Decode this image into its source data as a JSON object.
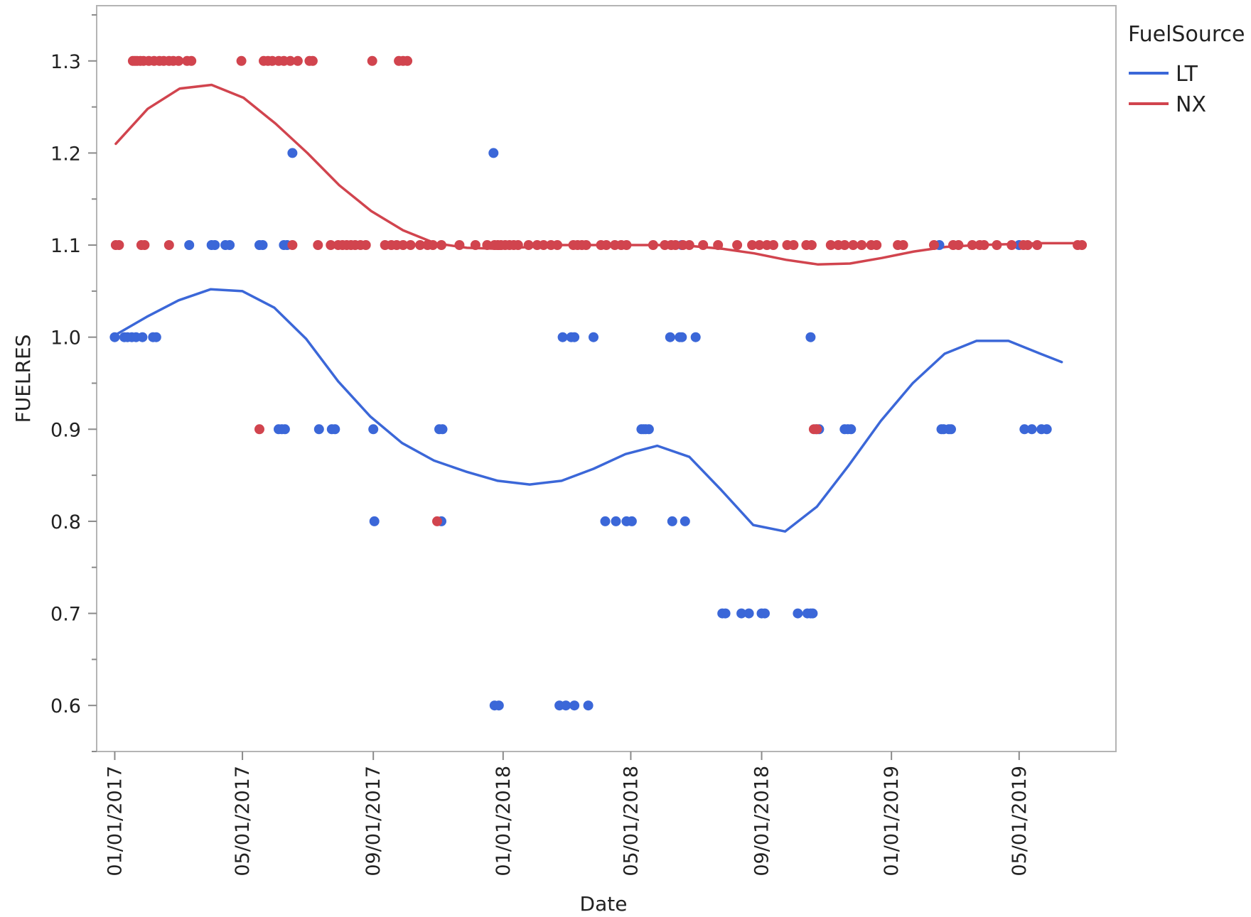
{
  "chart_data": {
    "type": "scatter",
    "title": "",
    "xlabel": "Date",
    "ylabel": "FUELRES",
    "x_axis": {
      "type": "date",
      "range": [
        "2016-12-15",
        "2019-07-31"
      ],
      "ticks": [
        {
          "date": "2017-01-01",
          "label": "01/01/2017"
        },
        {
          "date": "2017-05-01",
          "label": "05/01/2017"
        },
        {
          "date": "2017-09-01",
          "label": "09/01/2017"
        },
        {
          "date": "2018-01-01",
          "label": "01/01/2018"
        },
        {
          "date": "2018-05-01",
          "label": "05/01/2018"
        },
        {
          "date": "2018-09-01",
          "label": "09/01/2018"
        },
        {
          "date": "2019-01-01",
          "label": "01/01/2019"
        },
        {
          "date": "2019-05-01",
          "label": "05/01/2019"
        }
      ]
    },
    "y_axis": {
      "range": [
        0.55,
        1.36
      ],
      "ticks": [
        {
          "value": 0.6,
          "label": "0.6"
        },
        {
          "value": 0.7,
          "label": "0.7"
        },
        {
          "value": 0.8,
          "label": "0.8"
        },
        {
          "value": 0.9,
          "label": "0.9"
        },
        {
          "value": 1.0,
          "label": "1.0"
        },
        {
          "value": 1.1,
          "label": "1.1"
        },
        {
          "value": 1.2,
          "label": "1.2"
        },
        {
          "value": 1.3,
          "label": "1.3"
        }
      ],
      "minor_step": 0.05
    },
    "grid": false,
    "legend": {
      "title": "FuelSource",
      "position": "right-top",
      "entries": [
        {
          "name": "LT",
          "color": "#3b67d8"
        },
        {
          "name": "NX",
          "color": "#d1444e"
        }
      ]
    },
    "series": [
      {
        "name": "LT",
        "color": "#3b67d8",
        "points": [
          [
            "2017-01-01",
            1.0
          ],
          [
            "2017-01-10",
            1.0
          ],
          [
            "2017-01-13",
            1.0
          ],
          [
            "2017-01-17",
            1.0
          ],
          [
            "2017-01-21",
            1.0
          ],
          [
            "2017-01-27",
            1.0
          ],
          [
            "2017-02-06",
            1.0
          ],
          [
            "2017-02-09",
            1.0
          ],
          [
            "2017-03-12",
            1.1
          ],
          [
            "2017-04-02",
            1.1
          ],
          [
            "2017-04-05",
            1.1
          ],
          [
            "2017-04-15",
            1.1
          ],
          [
            "2017-04-19",
            1.1
          ],
          [
            "2017-05-17",
            1.1
          ],
          [
            "2017-05-20",
            1.1
          ],
          [
            "2017-06-09",
            1.1
          ],
          [
            "2017-06-12",
            1.1
          ],
          [
            "2017-06-17",
            1.2
          ],
          [
            "2017-06-04",
            0.9
          ],
          [
            "2017-06-07",
            0.9
          ],
          [
            "2017-06-10",
            0.9
          ],
          [
            "2017-07-12",
            0.9
          ],
          [
            "2017-07-24",
            0.9
          ],
          [
            "2017-07-27",
            0.9
          ],
          [
            "2017-09-01",
            0.9
          ],
          [
            "2017-11-02",
            0.9
          ],
          [
            "2017-11-05",
            0.9
          ],
          [
            "2017-09-02",
            0.8
          ],
          [
            "2017-11-04",
            0.8
          ],
          [
            "2017-12-23",
            1.2
          ],
          [
            "2017-12-24",
            0.6
          ],
          [
            "2017-12-28",
            0.6
          ],
          [
            "2018-02-23",
            0.6
          ],
          [
            "2018-03-01",
            0.6
          ],
          [
            "2018-03-09",
            0.6
          ],
          [
            "2018-03-22",
            0.6
          ],
          [
            "2018-02-26",
            1.0
          ],
          [
            "2018-03-06",
            1.0
          ],
          [
            "2018-03-09",
            1.0
          ],
          [
            "2018-03-27",
            1.0
          ],
          [
            "2018-06-07",
            1.0
          ],
          [
            "2018-06-16",
            1.0
          ],
          [
            "2018-06-18",
            1.0
          ],
          [
            "2018-07-01",
            1.0
          ],
          [
            "2018-10-17",
            1.0
          ],
          [
            "2018-04-07",
            0.8
          ],
          [
            "2018-04-17",
            0.8
          ],
          [
            "2018-04-27",
            0.8
          ],
          [
            "2018-05-02",
            0.8
          ],
          [
            "2018-06-09",
            0.8
          ],
          [
            "2018-06-21",
            0.8
          ],
          [
            "2018-05-11",
            0.9
          ],
          [
            "2018-05-13",
            0.9
          ],
          [
            "2018-05-15",
            0.9
          ],
          [
            "2018-05-18",
            0.9
          ],
          [
            "2018-10-22",
            0.9
          ],
          [
            "2018-10-25",
            0.9
          ],
          [
            "2018-11-18",
            0.9
          ],
          [
            "2018-11-21",
            0.9
          ],
          [
            "2018-11-24",
            0.9
          ],
          [
            "2019-02-17",
            0.9
          ],
          [
            "2019-02-19",
            0.9
          ],
          [
            "2019-02-24",
            0.9
          ],
          [
            "2019-02-26",
            0.9
          ],
          [
            "2019-05-06",
            0.9
          ],
          [
            "2019-05-13",
            0.9
          ],
          [
            "2019-05-22",
            0.9
          ],
          [
            "2019-05-27",
            0.9
          ],
          [
            "2018-07-26",
            0.7
          ],
          [
            "2018-07-29",
            0.7
          ],
          [
            "2018-08-13",
            0.7
          ],
          [
            "2018-08-20",
            0.7
          ],
          [
            "2018-09-01",
            0.7
          ],
          [
            "2018-09-04",
            0.7
          ],
          [
            "2018-10-05",
            0.7
          ],
          [
            "2018-10-14",
            0.7
          ],
          [
            "2018-10-17",
            0.7
          ],
          [
            "2018-10-19",
            0.7
          ],
          [
            "2018-06-18",
            1.1
          ],
          [
            "2019-02-15",
            1.1
          ],
          [
            "2019-05-01",
            1.1
          ]
        ],
        "smoother": [
          [
            "2017-01-01",
            1.002
          ],
          [
            "2017-01-31",
            1.022
          ],
          [
            "2017-03-02",
            1.04
          ],
          [
            "2017-04-01",
            1.052
          ],
          [
            "2017-05-01",
            1.05
          ],
          [
            "2017-05-31",
            1.032
          ],
          [
            "2017-06-30",
            0.998
          ],
          [
            "2017-07-30",
            0.952
          ],
          [
            "2017-08-29",
            0.914
          ],
          [
            "2017-09-28",
            0.885
          ],
          [
            "2017-10-28",
            0.866
          ],
          [
            "2017-11-27",
            0.854
          ],
          [
            "2017-12-27",
            0.844
          ],
          [
            "2018-01-26",
            0.84
          ],
          [
            "2018-02-25",
            0.844
          ],
          [
            "2018-03-27",
            0.857
          ],
          [
            "2018-04-26",
            0.873
          ],
          [
            "2018-05-26",
            0.882
          ],
          [
            "2018-06-25",
            0.87
          ],
          [
            "2018-07-25",
            0.834
          ],
          [
            "2018-08-24",
            0.796
          ],
          [
            "2018-09-23",
            0.789
          ],
          [
            "2018-10-23",
            0.816
          ],
          [
            "2018-11-22",
            0.861
          ],
          [
            "2018-12-22",
            0.909
          ],
          [
            "2019-01-21",
            0.95
          ],
          [
            "2019-02-20",
            0.982
          ],
          [
            "2019-03-22",
            0.996
          ],
          [
            "2019-04-21",
            0.996
          ],
          [
            "2019-05-21",
            0.982
          ],
          [
            "2019-06-10",
            0.973
          ]
        ]
      },
      {
        "name": "NX",
        "color": "#d1444e",
        "points": [
          [
            "2017-01-18",
            1.3
          ],
          [
            "2017-01-20",
            1.3
          ],
          [
            "2017-01-22",
            1.3
          ],
          [
            "2017-01-25",
            1.3
          ],
          [
            "2017-01-28",
            1.3
          ],
          [
            "2017-02-02",
            1.3
          ],
          [
            "2017-02-07",
            1.3
          ],
          [
            "2017-02-12",
            1.3
          ],
          [
            "2017-02-16",
            1.3
          ],
          [
            "2017-02-21",
            1.3
          ],
          [
            "2017-02-25",
            1.3
          ],
          [
            "2017-03-02",
            1.3
          ],
          [
            "2017-03-10",
            1.3
          ],
          [
            "2017-03-14",
            1.3
          ],
          [
            "2017-04-30",
            1.3
          ],
          [
            "2017-05-21",
            1.3
          ],
          [
            "2017-05-25",
            1.3
          ],
          [
            "2017-05-29",
            1.3
          ],
          [
            "2017-06-04",
            1.3
          ],
          [
            "2017-06-09",
            1.3
          ],
          [
            "2017-06-15",
            1.3
          ],
          [
            "2017-06-22",
            1.3
          ],
          [
            "2017-07-03",
            1.3
          ],
          [
            "2017-07-06",
            1.3
          ],
          [
            "2017-08-31",
            1.3
          ],
          [
            "2017-09-25",
            1.3
          ],
          [
            "2017-09-29",
            1.3
          ],
          [
            "2017-10-03",
            1.3
          ],
          [
            "2017-01-02",
            1.1
          ],
          [
            "2017-01-05",
            1.1
          ],
          [
            "2017-01-26",
            1.1
          ],
          [
            "2017-01-29",
            1.1
          ],
          [
            "2017-02-21",
            1.1
          ],
          [
            "2017-06-17",
            1.1
          ],
          [
            "2017-07-11",
            1.1
          ],
          [
            "2017-07-23",
            1.1
          ],
          [
            "2017-07-30",
            1.1
          ],
          [
            "2017-08-03",
            1.1
          ],
          [
            "2017-08-07",
            1.1
          ],
          [
            "2017-08-11",
            1.1
          ],
          [
            "2017-08-15",
            1.1
          ],
          [
            "2017-08-20",
            1.1
          ],
          [
            "2017-08-25",
            1.1
          ],
          [
            "2017-09-12",
            1.1
          ],
          [
            "2017-09-18",
            1.1
          ],
          [
            "2017-09-23",
            1.1
          ],
          [
            "2017-09-29",
            1.1
          ],
          [
            "2017-10-06",
            1.1
          ],
          [
            "2017-10-15",
            1.1
          ],
          [
            "2017-10-22",
            1.1
          ],
          [
            "2017-10-27",
            1.1
          ],
          [
            "2017-11-04",
            1.1
          ],
          [
            "2017-11-21",
            1.1
          ],
          [
            "2017-12-06",
            1.1
          ],
          [
            "2017-12-17",
            1.1
          ],
          [
            "2017-12-24",
            1.1
          ],
          [
            "2017-12-27",
            1.1
          ],
          [
            "2017-12-30",
            1.1
          ],
          [
            "2018-01-03",
            1.1
          ],
          [
            "2018-01-07",
            1.1
          ],
          [
            "2018-01-11",
            1.1
          ],
          [
            "2018-01-15",
            1.1
          ],
          [
            "2018-01-25",
            1.1
          ],
          [
            "2018-02-02",
            1.1
          ],
          [
            "2018-02-08",
            1.1
          ],
          [
            "2018-02-15",
            1.1
          ],
          [
            "2018-02-21",
            1.1
          ],
          [
            "2018-03-08",
            1.1
          ],
          [
            "2018-03-12",
            1.1
          ],
          [
            "2018-03-16",
            1.1
          ],
          [
            "2018-03-20",
            1.1
          ],
          [
            "2018-04-03",
            1.1
          ],
          [
            "2018-04-08",
            1.1
          ],
          [
            "2018-04-16",
            1.1
          ],
          [
            "2018-04-22",
            1.1
          ],
          [
            "2018-04-27",
            1.1
          ],
          [
            "2018-05-22",
            1.1
          ],
          [
            "2018-06-02",
            1.1
          ],
          [
            "2018-06-08",
            1.1
          ],
          [
            "2018-06-12",
            1.1
          ],
          [
            "2018-06-19",
            1.1
          ],
          [
            "2018-06-25",
            1.1
          ],
          [
            "2018-07-08",
            1.1
          ],
          [
            "2018-07-22",
            1.1
          ],
          [
            "2018-08-09",
            1.1
          ],
          [
            "2018-08-23",
            1.1
          ],
          [
            "2018-08-30",
            1.1
          ],
          [
            "2018-09-06",
            1.1
          ],
          [
            "2018-09-12",
            1.1
          ],
          [
            "2018-09-25",
            1.1
          ],
          [
            "2018-10-01",
            1.1
          ],
          [
            "2018-10-13",
            1.1
          ],
          [
            "2018-10-18",
            1.1
          ],
          [
            "2018-11-05",
            1.1
          ],
          [
            "2018-11-12",
            1.1
          ],
          [
            "2018-11-18",
            1.1
          ],
          [
            "2018-11-26",
            1.1
          ],
          [
            "2018-12-04",
            1.1
          ],
          [
            "2018-12-13",
            1.1
          ],
          [
            "2018-12-18",
            1.1
          ],
          [
            "2019-01-07",
            1.1
          ],
          [
            "2019-01-12",
            1.1
          ],
          [
            "2019-02-10",
            1.1
          ],
          [
            "2019-02-28",
            1.1
          ],
          [
            "2019-03-05",
            1.1
          ],
          [
            "2019-03-18",
            1.1
          ],
          [
            "2019-03-25",
            1.1
          ],
          [
            "2019-03-29",
            1.1
          ],
          [
            "2019-04-10",
            1.1
          ],
          [
            "2019-04-24",
            1.1
          ],
          [
            "2019-05-05",
            1.1
          ],
          [
            "2019-05-09",
            1.1
          ],
          [
            "2019-05-18",
            1.1
          ],
          [
            "2019-06-25",
            1.1
          ],
          [
            "2019-06-29",
            1.1
          ],
          [
            "2017-05-17",
            0.9
          ],
          [
            "2017-10-31",
            0.8
          ],
          [
            "2018-10-20",
            0.9
          ],
          [
            "2018-10-23",
            0.9
          ]
        ],
        "smoother": [
          [
            "2017-01-02",
            1.21
          ],
          [
            "2017-02-01",
            1.248
          ],
          [
            "2017-03-03",
            1.27
          ],
          [
            "2017-04-02",
            1.274
          ],
          [
            "2017-05-02",
            1.26
          ],
          [
            "2017-06-01",
            1.232
          ],
          [
            "2017-07-01",
            1.2
          ],
          [
            "2017-07-31",
            1.165
          ],
          [
            "2017-08-30",
            1.137
          ],
          [
            "2017-09-29",
            1.116
          ],
          [
            "2017-10-29",
            1.102
          ],
          [
            "2017-11-28",
            1.097
          ],
          [
            "2017-12-28",
            1.096
          ],
          [
            "2018-01-27",
            1.098
          ],
          [
            "2018-02-26",
            1.1
          ],
          [
            "2018-03-28",
            1.1
          ],
          [
            "2018-04-27",
            1.1
          ],
          [
            "2018-05-27",
            1.1
          ],
          [
            "2018-06-26",
            1.099
          ],
          [
            "2018-07-26",
            1.096
          ],
          [
            "2018-08-25",
            1.091
          ],
          [
            "2018-09-24",
            1.084
          ],
          [
            "2018-10-24",
            1.079
          ],
          [
            "2018-11-23",
            1.08
          ],
          [
            "2018-12-23",
            1.086
          ],
          [
            "2019-01-22",
            1.093
          ],
          [
            "2019-02-21",
            1.098
          ],
          [
            "2019-03-23",
            1.1
          ],
          [
            "2019-04-22",
            1.101
          ],
          [
            "2019-05-22",
            1.102
          ],
          [
            "2019-06-30",
            1.102
          ]
        ]
      }
    ]
  }
}
